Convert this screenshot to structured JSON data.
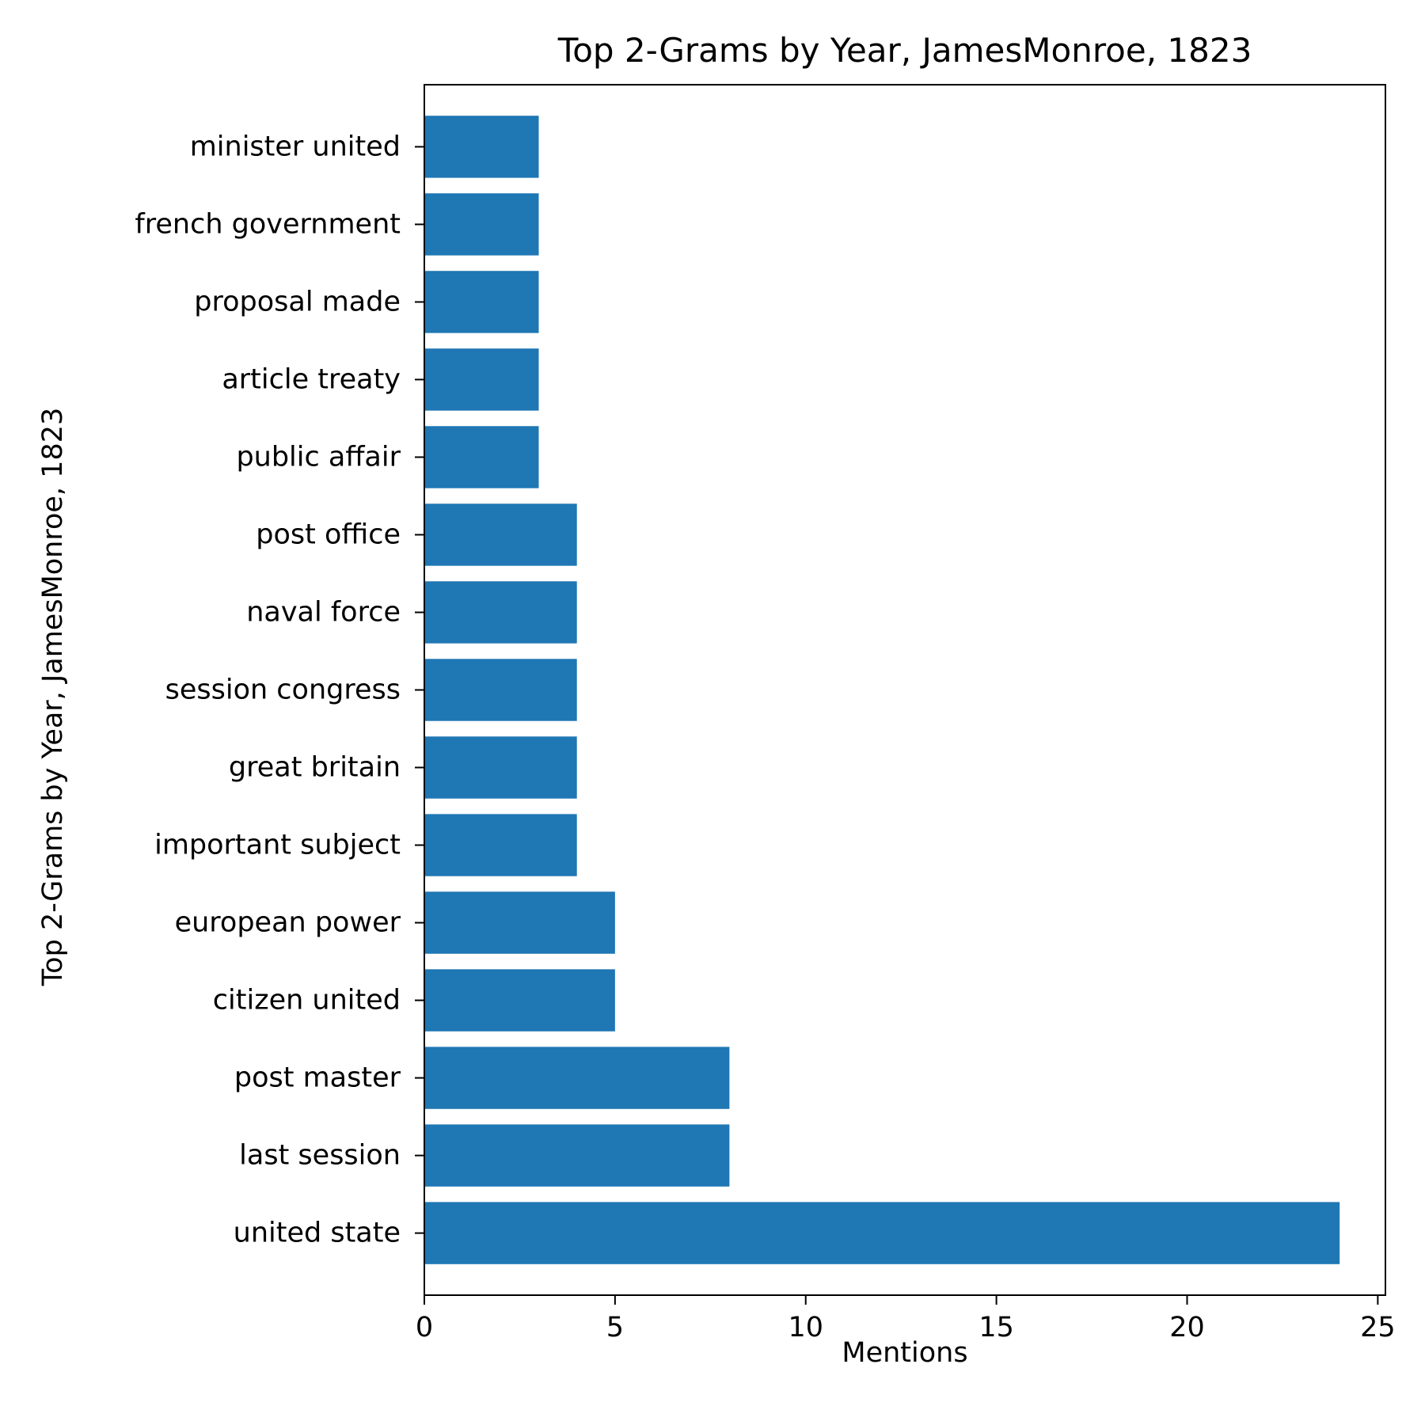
{
  "chart_data": {
    "type": "bar",
    "orientation": "horizontal",
    "title": "Top 2-Grams by Year, JamesMonroe, 1823",
    "xlabel": "Mentions",
    "ylabel": "Top 2-Grams by Year, JamesMonroe, 1823",
    "xlim": [
      0,
      25.2
    ],
    "xticks": [
      "0",
      "5",
      "10",
      "15",
      "20",
      "25"
    ],
    "grid": false,
    "bar_color": "#1f77b4",
    "categories": [
      "united state",
      "last session",
      "post master",
      "citizen united",
      "european power",
      "important subject",
      "great britain",
      "session congress",
      "naval force",
      "post office",
      "public affair",
      "article treaty",
      "proposal made",
      "french government",
      "minister united"
    ],
    "values": [
      24,
      8,
      8,
      5,
      5,
      4,
      4,
      4,
      4,
      4,
      3,
      3,
      3,
      3,
      3
    ]
  }
}
